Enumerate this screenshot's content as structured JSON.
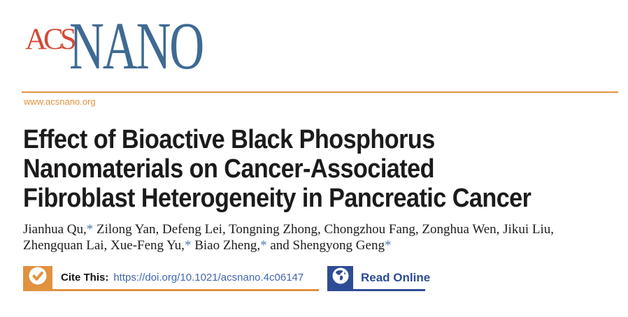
{
  "journal": {
    "logo_acs": "ACS",
    "logo_nano": "NANO",
    "website": "www.acsnano.org"
  },
  "article": {
    "title": "Effect of Bioactive Black Phosphorus Nanomaterials on Cancer-Associated Fibroblast Heterogeneity in Pancreatic Cancer",
    "title_lines": [
      "Effect of Bioactive Black Phosphorus",
      "Nanomaterials on Cancer-Associated",
      "Fibroblast Heterogeneity in Pancreatic Cancer"
    ],
    "authors_line1": "Jianhua Qu,* Zilong Yan, Defeng Lei, Tongning Zhong, Chongzhou Fang, Zonghua Wen, Jikui Liu,",
    "authors_line2": "Zhengquan Lai, Xue-Feng Yu,* Biao Zheng,* and Shengyong Geng*"
  },
  "cite": {
    "label": "Cite This:",
    "doi": "https://doi.org/10.1021/acsnano.4c06147",
    "icon": "checkmark-icon"
  },
  "read_online": {
    "label": "Read Online",
    "icon": "globe-icon"
  },
  "colors": {
    "orange": "#E0923F",
    "acs_red": "#D34A35",
    "nano_blue": "#3E6A94",
    "link_blue": "#4166B0",
    "navy": "#2E4C95",
    "asterisk_blue": "#5579AE"
  }
}
